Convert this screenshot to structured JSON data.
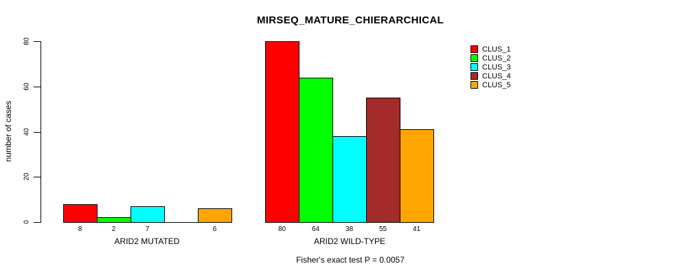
{
  "title": "MIRSEQ_MATURE_CHIERARCHICAL",
  "footer": "Fisher's exact test P = 0.0057",
  "chart_data": {
    "type": "bar",
    "title": "MIRSEQ_MATURE_CHIERARCHICAL",
    "xlabel": "",
    "ylabel": "number of cases",
    "ylim": [
      0,
      80
    ],
    "yticks": [
      0,
      20,
      40,
      60,
      80
    ],
    "grid": false,
    "legend_position": "right",
    "categories": [
      "ARID2 MUTATED",
      "ARID2 WILD-TYPE"
    ],
    "series": [
      {
        "name": "CLUS_1",
        "color": "#FF0000",
        "values": [
          8,
          80
        ]
      },
      {
        "name": "CLUS_2",
        "color": "#00FF00",
        "values": [
          2,
          64
        ]
      },
      {
        "name": "CLUS_3",
        "color": "#00FFFF",
        "values": [
          7,
          38
        ]
      },
      {
        "name": "CLUS_4",
        "color": "#A52A2A",
        "values": [
          0,
          55
        ]
      },
      {
        "name": "CLUS_5",
        "color": "#FFA500",
        "values": [
          6,
          41
        ]
      }
    ],
    "bar_labels": [
      [
        "8",
        "2",
        "7",
        "",
        "6"
      ],
      [
        "80",
        "64",
        "38",
        "55",
        "41"
      ]
    ],
    "annotation": "Fisher's exact test P = 0.0057"
  }
}
